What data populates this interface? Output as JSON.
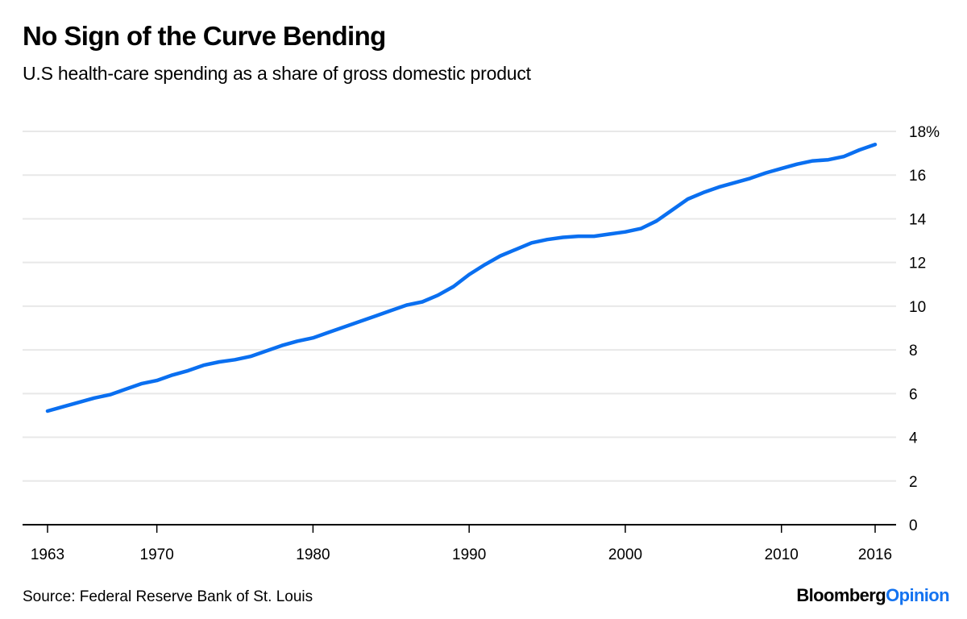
{
  "header": {
    "title": "No Sign of the Curve Bending",
    "subtitle": "U.S health-care spending as a share of gross domestic product"
  },
  "footer": {
    "source": "Source: Federal Reserve Bank of St. Louis",
    "brand_primary": "Bloomberg",
    "brand_secondary": "Opinion"
  },
  "colors": {
    "line": "#0a6ff0",
    "gridline": "#e8e8e8",
    "axis": "#000000",
    "brand_accent": "#1473f0"
  },
  "chart_data": {
    "type": "line",
    "title": "No Sign of the Curve Bending",
    "subtitle": "U.S health-care spending as a share of gross domestic product",
    "xlabel": "",
    "ylabel": "",
    "xlim": [
      1963,
      2016
    ],
    "ylim": [
      0,
      18
    ],
    "grid": true,
    "y_axis_side": "right",
    "y_unit_suffix": "%",
    "x_ticks": [
      1963,
      1970,
      1980,
      1990,
      2000,
      2010,
      2016
    ],
    "x_tick_labels": [
      "1963",
      "1970",
      "1980",
      "1990",
      "2000",
      "2010",
      "2016"
    ],
    "y_ticks": [
      0,
      2,
      4,
      6,
      8,
      10,
      12,
      14,
      16,
      18
    ],
    "y_tick_labels": [
      "0",
      "2",
      "4",
      "6",
      "8",
      "10",
      "12",
      "14",
      "16",
      "18%"
    ],
    "series": [
      {
        "name": "Health-care spending (% of GDP)",
        "x": [
          1963,
          1964,
          1965,
          1966,
          1967,
          1968,
          1969,
          1970,
          1971,
          1972,
          1973,
          1974,
          1975,
          1976,
          1977,
          1978,
          1979,
          1980,
          1981,
          1982,
          1983,
          1984,
          1985,
          1986,
          1987,
          1988,
          1989,
          1990,
          1991,
          1992,
          1993,
          1994,
          1995,
          1996,
          1997,
          1998,
          1999,
          2000,
          2001,
          2002,
          2003,
          2004,
          2005,
          2006,
          2007,
          2008,
          2009,
          2010,
          2011,
          2012,
          2013,
          2014,
          2015,
          2016
        ],
        "values": [
          5.2,
          5.4,
          5.6,
          5.8,
          5.95,
          6.2,
          6.45,
          6.6,
          6.85,
          7.05,
          7.3,
          7.45,
          7.55,
          7.7,
          7.95,
          8.2,
          8.4,
          8.55,
          8.8,
          9.05,
          9.3,
          9.55,
          9.8,
          10.05,
          10.2,
          10.5,
          10.9,
          11.45,
          11.9,
          12.3,
          12.6,
          12.9,
          13.05,
          13.15,
          13.2,
          13.2,
          13.3,
          13.4,
          13.55,
          13.9,
          14.4,
          14.9,
          15.2,
          15.45,
          15.65,
          15.85,
          16.1,
          16.3,
          16.5,
          16.65,
          16.7,
          16.85,
          17.15,
          17.4
        ]
      }
    ]
  }
}
